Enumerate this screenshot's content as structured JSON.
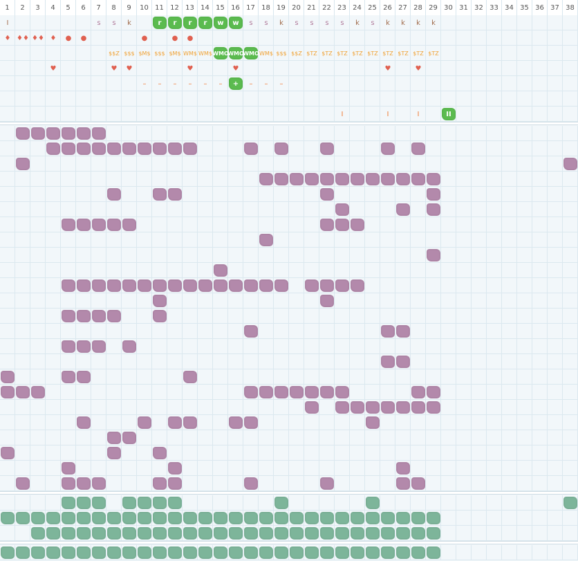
{
  "colors": {
    "grid_line": "#dbe8ef",
    "background": "#f2f7fa",
    "purple_tile": "#b389ab",
    "teal_tile": "#7db59a",
    "green_token": "#5bbb4f",
    "brown_letter": "#a06a4a",
    "pink_letter": "#b07a9a",
    "red_mark": "#e06050",
    "orange_mark": "#f0a030",
    "orange_dash": "#f07830"
  },
  "columns": [
    "1",
    "2",
    "3",
    "4",
    "5",
    "6",
    "7",
    "8",
    "9",
    "10",
    "11",
    "12",
    "13",
    "14",
    "15",
    "16",
    "17",
    "18",
    "19",
    "20",
    "21",
    "22",
    "23",
    "24",
    "25",
    "26",
    "27",
    "28",
    "29",
    "30",
    "31",
    "32",
    "33",
    "34",
    "35",
    "36",
    "37",
    "38"
  ],
  "top_tracks": [
    {
      "name": "letters",
      "items": [
        {
          "col": 1,
          "text": "I",
          "color": "brown"
        },
        {
          "col": 7,
          "text": "s",
          "color": "pink"
        },
        {
          "col": 8,
          "text": "s",
          "color": "pink"
        },
        {
          "col": 9,
          "text": "k",
          "color": "brown"
        },
        {
          "col": 11,
          "text": "r",
          "color": "green"
        },
        {
          "col": 12,
          "text": "r",
          "color": "green"
        },
        {
          "col": 13,
          "text": "r",
          "color": "green"
        },
        {
          "col": 14,
          "text": "r",
          "color": "green"
        },
        {
          "col": 15,
          "text": "w",
          "color": "green"
        },
        {
          "col": 16,
          "text": "w",
          "color": "green"
        },
        {
          "col": 17,
          "text": "s",
          "color": "pink"
        },
        {
          "col": 18,
          "text": "s",
          "color": "pink"
        },
        {
          "col": 19,
          "text": "k",
          "color": "brown"
        },
        {
          "col": 20,
          "text": "s",
          "color": "pink"
        },
        {
          "col": 21,
          "text": "s",
          "color": "pink"
        },
        {
          "col": 22,
          "text": "s",
          "color": "pink"
        },
        {
          "col": 23,
          "text": "s",
          "color": "pink"
        },
        {
          "col": 24,
          "text": "k",
          "color": "brown"
        },
        {
          "col": 25,
          "text": "s",
          "color": "pink"
        },
        {
          "col": 26,
          "text": "k",
          "color": "brown"
        },
        {
          "col": 27,
          "text": "k",
          "color": "brown"
        },
        {
          "col": 28,
          "text": "k",
          "color": "brown"
        },
        {
          "col": 29,
          "text": "k",
          "color": "brown"
        }
      ]
    },
    {
      "name": "drops",
      "items": [
        {
          "col": 1,
          "text": "♦",
          "color": "red"
        },
        {
          "col": 2,
          "text": "♦♦",
          "color": "red"
        },
        {
          "col": 3,
          "text": "♦♦",
          "color": "red"
        },
        {
          "col": 4,
          "text": "♦",
          "color": "red"
        },
        {
          "col": 5,
          "text": "●",
          "color": "red"
        },
        {
          "col": 6,
          "text": "●",
          "color": "red"
        },
        {
          "col": 10,
          "text": "●",
          "color": "red"
        },
        {
          "col": 12,
          "text": "●",
          "color": "red"
        },
        {
          "col": 13,
          "text": "●",
          "color": "red"
        }
      ]
    },
    {
      "name": "tags",
      "items": [
        {
          "col": 8,
          "text": "$$Z",
          "color": "orange"
        },
        {
          "col": 9,
          "text": "$$$",
          "color": "orange"
        },
        {
          "col": 10,
          "text": "$M$",
          "color": "orange"
        },
        {
          "col": 11,
          "text": "$$$",
          "color": "orange"
        },
        {
          "col": 12,
          "text": "$M$",
          "color": "orange"
        },
        {
          "col": 13,
          "text": "WM$",
          "color": "orange"
        },
        {
          "col": 14,
          "text": "WM$",
          "color": "orange"
        },
        {
          "col": 15,
          "text": "WMO",
          "color": "green"
        },
        {
          "col": 16,
          "text": "WMO",
          "color": "green"
        },
        {
          "col": 17,
          "text": "WMO",
          "color": "green"
        },
        {
          "col": 18,
          "text": "WM$",
          "color": "orange"
        },
        {
          "col": 19,
          "text": "$$$",
          "color": "orange"
        },
        {
          "col": 20,
          "text": "$$Z",
          "color": "orange"
        },
        {
          "col": 21,
          "text": "$TZ",
          "color": "orange"
        },
        {
          "col": 22,
          "text": "$TZ",
          "color": "orange"
        },
        {
          "col": 23,
          "text": "$TZ",
          "color": "orange"
        },
        {
          "col": 24,
          "text": "$TZ",
          "color": "orange"
        },
        {
          "col": 25,
          "text": "$TZ",
          "color": "orange"
        },
        {
          "col": 26,
          "text": "$TZ",
          "color": "orange"
        },
        {
          "col": 27,
          "text": "$TZ",
          "color": "orange"
        },
        {
          "col": 28,
          "text": "$TZ",
          "color": "orange"
        },
        {
          "col": 29,
          "text": "$TZ",
          "color": "orange"
        }
      ]
    },
    {
      "name": "hearts",
      "items": [
        {
          "col": 4,
          "text": "♥",
          "color": "red"
        },
        {
          "col": 8,
          "text": "♥",
          "color": "red"
        },
        {
          "col": 9,
          "text": "♥",
          "color": "red"
        },
        {
          "col": 13,
          "text": "♥",
          "color": "red"
        },
        {
          "col": 16,
          "text": "♥",
          "color": "red"
        },
        {
          "col": 26,
          "text": "♥",
          "color": "red"
        },
        {
          "col": 28,
          "text": "♥",
          "color": "red"
        }
      ]
    },
    {
      "name": "dashes",
      "items": [
        {
          "col": 10,
          "text": "–",
          "color": "dash"
        },
        {
          "col": 11,
          "text": "–",
          "color": "dash"
        },
        {
          "col": 12,
          "text": "–",
          "color": "dash"
        },
        {
          "col": 13,
          "text": "–",
          "color": "dash"
        },
        {
          "col": 14,
          "text": "–",
          "color": "dash"
        },
        {
          "col": 15,
          "text": "–",
          "color": "dash"
        },
        {
          "col": 16,
          "text": "+",
          "color": "green"
        },
        {
          "col": 17,
          "text": "–",
          "color": "dash"
        },
        {
          "col": 18,
          "text": "–",
          "color": "dash"
        },
        {
          "col": 19,
          "text": "–",
          "color": "dash"
        }
      ]
    },
    {
      "name": "empty",
      "items": []
    },
    {
      "name": "markers",
      "items": [
        {
          "col": 23,
          "text": "I",
          "color": "dash"
        },
        {
          "col": 26,
          "text": "I",
          "color": "dash"
        },
        {
          "col": 28,
          "text": "I",
          "color": "dash"
        },
        {
          "col": 30,
          "text": "II",
          "color": "green"
        }
      ]
    }
  ],
  "purple_rows": [
    [
      2,
      3,
      4,
      5,
      6,
      7
    ],
    [
      4,
      5,
      6,
      7,
      8,
      9,
      10,
      11,
      12,
      13,
      17,
      19,
      22,
      26,
      28
    ],
    [
      2,
      38
    ],
    [
      18,
      19,
      20,
      21,
      22,
      23,
      24,
      25,
      26,
      27,
      28,
      29
    ],
    [
      8,
      11,
      12,
      22,
      29
    ],
    [
      23,
      27,
      29
    ],
    [
      5,
      6,
      7,
      8,
      9,
      22,
      23,
      24
    ],
    [
      18
    ],
    [
      29
    ],
    [
      15
    ],
    [
      5,
      6,
      7,
      8,
      9,
      10,
      11,
      12,
      13,
      14,
      15,
      16,
      17,
      18,
      19,
      21,
      22,
      23,
      24
    ],
    [
      11,
      22
    ],
    [
      5,
      6,
      7,
      8,
      11
    ],
    [
      17,
      26,
      27
    ],
    [
      5,
      6,
      7,
      9
    ],
    [
      26,
      27
    ],
    [
      1,
      5,
      6,
      13
    ],
    [
      1,
      2,
      3,
      17,
      18,
      19,
      20,
      21,
      22,
      23,
      28,
      29
    ],
    [
      21,
      23,
      24,
      25,
      26,
      27,
      28,
      29
    ],
    [
      6,
      10,
      12,
      13,
      16,
      17,
      25
    ],
    [
      8,
      9
    ],
    [
      1,
      8,
      11
    ],
    [
      5,
      12,
      27
    ],
    [
      2,
      5,
      6,
      7,
      11,
      12,
      17,
      22,
      27,
      28
    ]
  ],
  "teal_rows": [
    [
      5,
      6,
      7,
      9,
      10,
      11,
      12,
      19,
      25,
      38
    ],
    [
      1,
      2,
      3,
      4,
      5,
      6,
      7,
      8,
      9,
      10,
      11,
      12,
      13,
      14,
      15,
      16,
      17,
      18,
      19,
      20,
      21,
      22,
      23,
      24,
      25,
      26,
      27,
      28,
      29
    ],
    [
      3,
      4,
      5,
      6,
      7,
      8,
      9,
      10,
      11,
      12,
      13,
      14,
      15,
      16,
      17,
      18,
      19,
      20,
      21,
      22,
      23,
      24,
      25,
      26,
      27,
      28,
      29
    ]
  ],
  "bottom_row": [
    1,
    2,
    3,
    4,
    5,
    6,
    7,
    8,
    9,
    10,
    11,
    12,
    13,
    14,
    15,
    16,
    17,
    18,
    19,
    20,
    21,
    22,
    23,
    24,
    25,
    26,
    27,
    28,
    29
  ]
}
